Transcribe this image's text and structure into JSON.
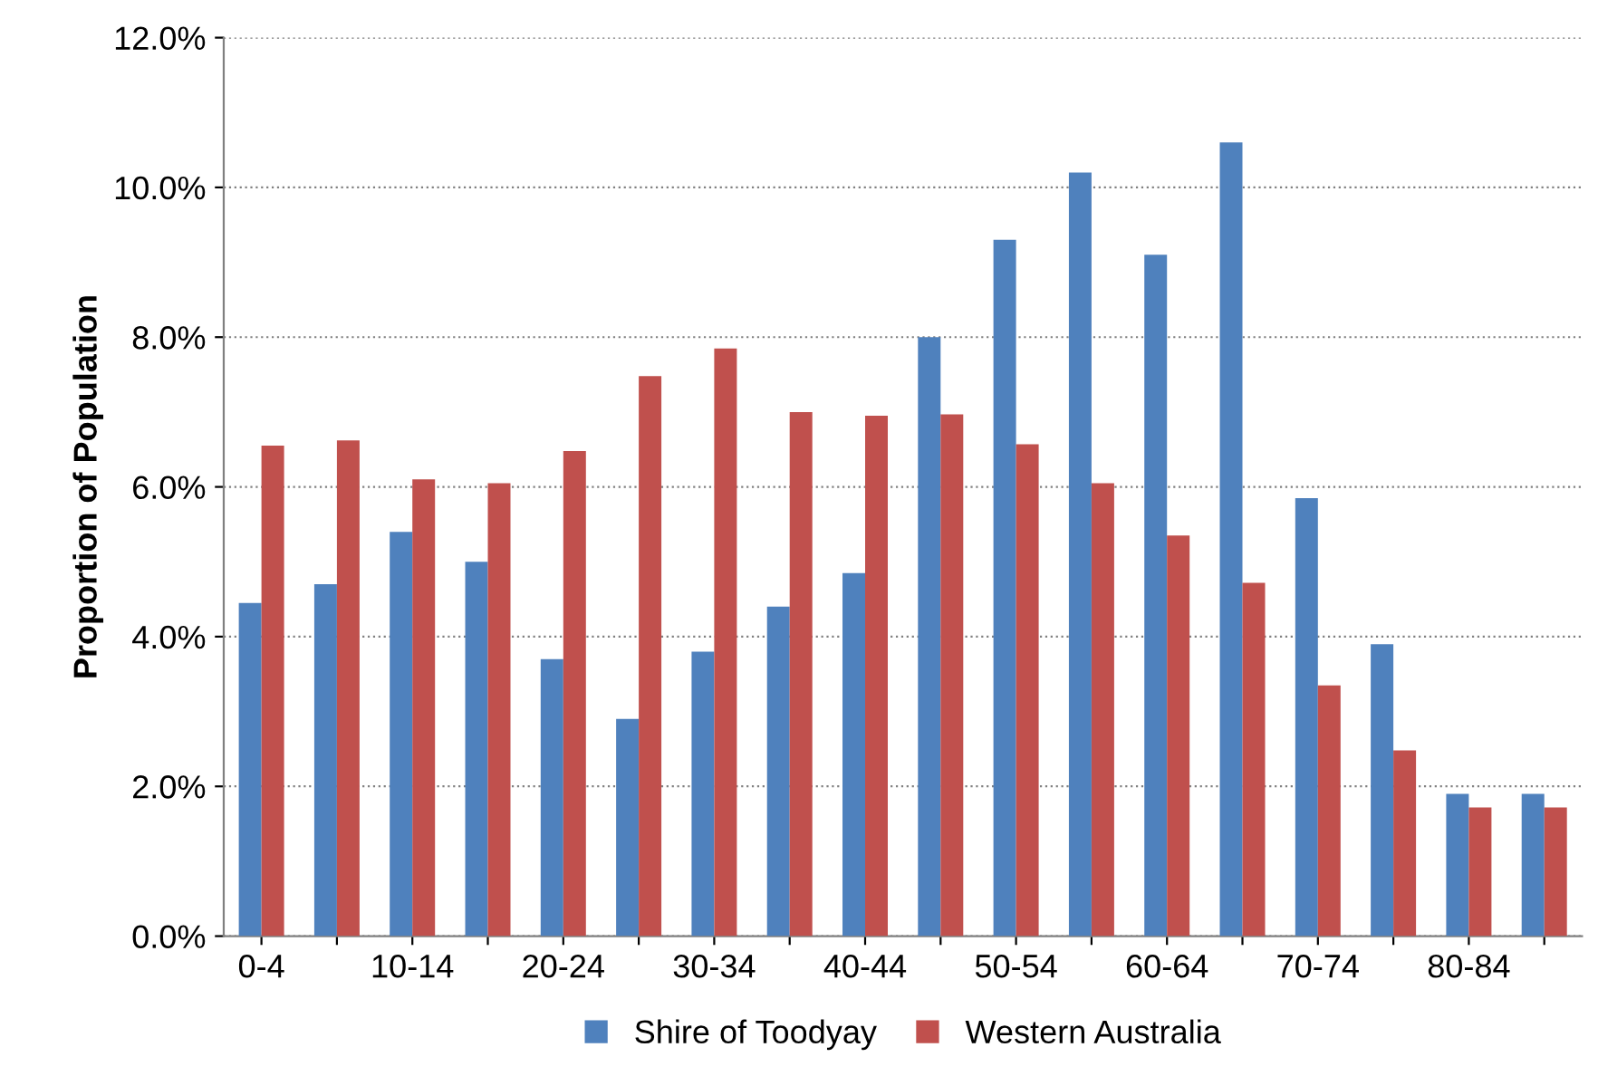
{
  "chart_data": {
    "type": "bar",
    "ylabel": "Proportion of Population",
    "categories": [
      "0-4",
      null,
      "10-14",
      null,
      "20-24",
      null,
      "30-34",
      null,
      "40-44",
      null,
      "50-54",
      null,
      "60-64",
      null,
      "70-74",
      null,
      "80-84",
      null
    ],
    "series": [
      {
        "name": "Shire of Toodyay",
        "color": "#4f81bd",
        "values": [
          4.45,
          4.7,
          5.4,
          5.0,
          3.7,
          2.9,
          3.8,
          4.4,
          4.85,
          8.0,
          9.3,
          10.2,
          9.1,
          10.6,
          5.85,
          3.9,
          1.9,
          1.9
        ]
      },
      {
        "name": "Western Australia",
        "color": "#c0504d",
        "values": [
          6.55,
          6.62,
          6.1,
          6.05,
          6.48,
          7.48,
          7.85,
          7.0,
          6.95,
          6.97,
          6.57,
          6.05,
          5.35,
          4.72,
          3.35,
          2.48,
          1.72,
          1.72
        ]
      }
    ],
    "ylim": [
      0,
      12
    ],
    "yticks": [
      {
        "value": 0,
        "label": "0.0%"
      },
      {
        "value": 2,
        "label": "2.0%"
      },
      {
        "value": 4,
        "label": "4.0%"
      },
      {
        "value": 6,
        "label": "6.0%"
      },
      {
        "value": 8,
        "label": "8.0%"
      },
      {
        "value": 10,
        "label": "10.0%"
      },
      {
        "value": 12,
        "label": "12.0%"
      }
    ],
    "grid": "y",
    "legend": "bottom"
  }
}
